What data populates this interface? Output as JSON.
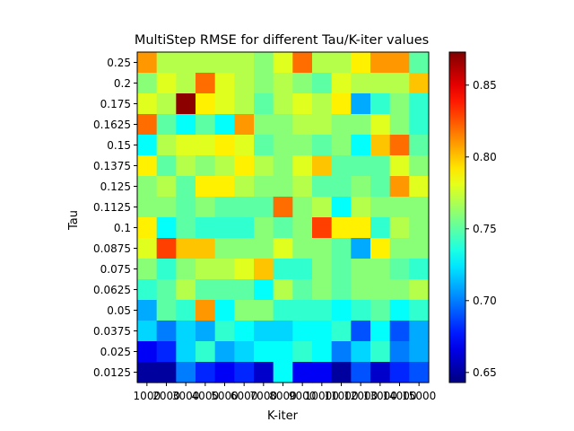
{
  "chart_data": {
    "type": "heatmap",
    "title": "MultiStep RMSE for different Tau/K-iter values",
    "xlabel": "K-iter",
    "ylabel": "Tau",
    "x_categories": [
      "1000",
      "2000",
      "3000",
      "4000",
      "5000",
      "6000",
      "7000",
      "8000",
      "9000",
      "10000",
      "11000",
      "12000",
      "13000",
      "14000",
      "15000"
    ],
    "x_tick_labels_printed": [
      "1000",
      "2000",
      "3000",
      "4000",
      "5000",
      "6000",
      "7000",
      "8000",
      "9000",
      "10000",
      "11000",
      "12000",
      "13000",
      "14000",
      "15000"
    ],
    "y_categories": [
      "0.25",
      "0.2",
      "0.175",
      "0.1625",
      "0.15",
      "0.1375",
      "0.125",
      "0.1125",
      "0.1",
      "0.0875",
      "0.075",
      "0.0625",
      "0.05",
      "0.0375",
      "0.025",
      "0.0125"
    ],
    "values": [
      [
        0.81,
        0.77,
        0.77,
        0.77,
        0.77,
        0.77,
        0.76,
        0.78,
        0.82,
        0.77,
        0.77,
        0.79,
        0.81,
        0.81,
        0.75
      ],
      [
        0.76,
        0.78,
        0.77,
        0.82,
        0.78,
        0.77,
        0.76,
        0.77,
        0.76,
        0.75,
        0.78,
        0.77,
        0.77,
        0.77,
        0.8
      ],
      [
        0.78,
        0.77,
        0.87,
        0.79,
        0.78,
        0.77,
        0.75,
        0.77,
        0.78,
        0.77,
        0.79,
        0.71,
        0.74,
        0.76,
        0.74
      ],
      [
        0.82,
        0.75,
        0.73,
        0.75,
        0.73,
        0.81,
        0.76,
        0.76,
        0.77,
        0.77,
        0.76,
        0.76,
        0.78,
        0.76,
        0.74
      ],
      [
        0.73,
        0.77,
        0.78,
        0.78,
        0.79,
        0.78,
        0.75,
        0.76,
        0.76,
        0.75,
        0.76,
        0.73,
        0.8,
        0.82,
        0.75
      ],
      [
        0.79,
        0.75,
        0.77,
        0.76,
        0.77,
        0.79,
        0.77,
        0.76,
        0.78,
        0.8,
        0.75,
        0.75,
        0.75,
        0.78,
        0.76
      ],
      [
        0.76,
        0.77,
        0.75,
        0.79,
        0.79,
        0.77,
        0.76,
        0.76,
        0.77,
        0.75,
        0.75,
        0.76,
        0.75,
        0.81,
        0.78
      ],
      [
        0.76,
        0.76,
        0.75,
        0.76,
        0.75,
        0.75,
        0.75,
        0.82,
        0.76,
        0.77,
        0.73,
        0.77,
        0.76,
        0.76,
        0.76
      ],
      [
        0.79,
        0.73,
        0.75,
        0.74,
        0.74,
        0.74,
        0.76,
        0.75,
        0.76,
        0.83,
        0.79,
        0.79,
        0.74,
        0.77,
        0.76
      ],
      [
        0.78,
        0.83,
        0.8,
        0.8,
        0.76,
        0.76,
        0.76,
        0.78,
        0.76,
        0.76,
        0.75,
        0.71,
        0.79,
        0.76,
        0.76
      ],
      [
        0.76,
        0.74,
        0.76,
        0.77,
        0.77,
        0.78,
        0.8,
        0.74,
        0.74,
        0.76,
        0.75,
        0.76,
        0.76,
        0.75,
        0.74
      ],
      [
        0.74,
        0.75,
        0.77,
        0.75,
        0.75,
        0.75,
        0.73,
        0.77,
        0.75,
        0.76,
        0.75,
        0.76,
        0.76,
        0.76,
        0.77
      ],
      [
        0.71,
        0.75,
        0.74,
        0.81,
        0.73,
        0.76,
        0.76,
        0.74,
        0.74,
        0.74,
        0.73,
        0.74,
        0.75,
        0.73,
        0.74
      ],
      [
        0.72,
        0.7,
        0.72,
        0.71,
        0.74,
        0.73,
        0.72,
        0.72,
        0.73,
        0.73,
        0.74,
        0.69,
        0.73,
        0.69,
        0.71
      ],
      [
        0.67,
        0.68,
        0.72,
        0.74,
        0.71,
        0.72,
        0.73,
        0.73,
        0.74,
        0.73,
        0.7,
        0.72,
        0.74,
        0.7,
        0.71
      ],
      [
        0.65,
        0.65,
        0.7,
        0.68,
        0.67,
        0.68,
        0.66,
        0.73,
        0.67,
        0.67,
        0.65,
        0.69,
        0.66,
        0.68,
        0.69
      ]
    ],
    "colormap": "jet",
    "vmin": 0.643,
    "vmax": 0.873,
    "colorbar_ticks": [
      0.65,
      0.7,
      0.75,
      0.8,
      0.85
    ],
    "colorbar_tick_labels": [
      "0.65",
      "0.70",
      "0.75",
      "0.80",
      "0.85"
    ],
    "grid": false
  }
}
